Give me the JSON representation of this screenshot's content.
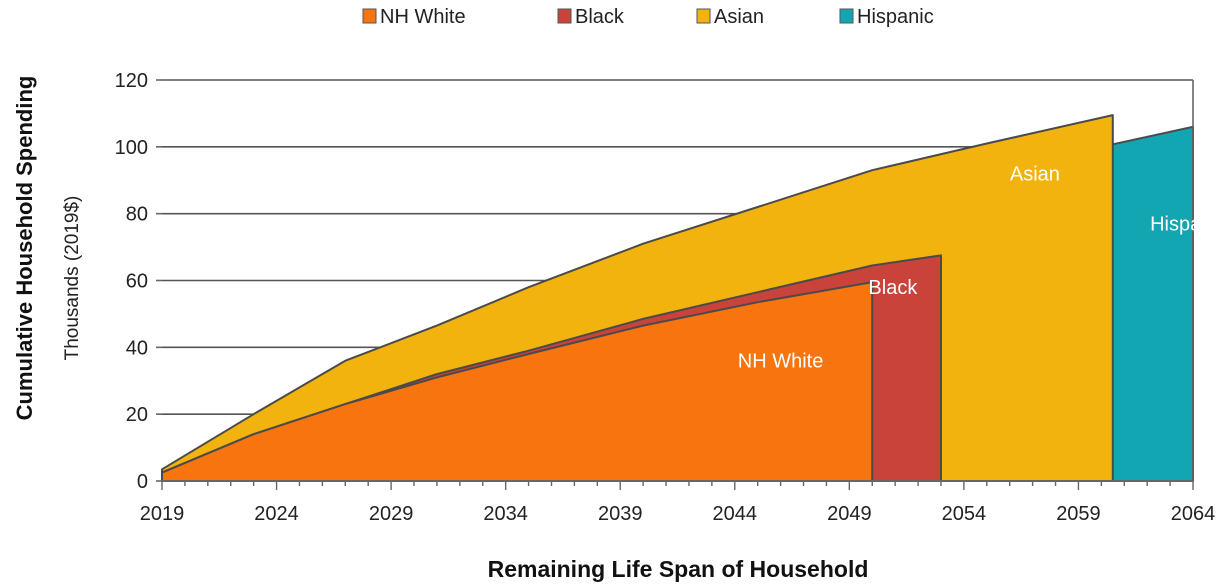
{
  "chart_data": {
    "type": "area",
    "title": "",
    "xlabel": "Remaining Life Span of Household",
    "ylabel": "Cumulative Household Spending",
    "ylabel_sub": "Thousands (2019$)",
    "xlim": [
      2019,
      2064
    ],
    "ylim": [
      0,
      120
    ],
    "x_ticks": [
      2019,
      2024,
      2029,
      2034,
      2039,
      2044,
      2049,
      2054,
      2059,
      2064
    ],
    "y_ticks": [
      0,
      20,
      40,
      60,
      80,
      100,
      120
    ],
    "grid": true,
    "legend_position": "top",
    "series": [
      {
        "name": "Hispanic",
        "color": "#12a6b3",
        "label": "Hispanic",
        "points": [
          [
            2019,
            3
          ],
          [
            2023,
            15
          ],
          [
            2027,
            26
          ],
          [
            2031,
            33
          ],
          [
            2035,
            42
          ],
          [
            2040,
            54
          ],
          [
            2045,
            66
          ],
          [
            2050,
            77
          ],
          [
            2055,
            88
          ],
          [
            2060,
            100
          ],
          [
            2064,
            106
          ]
        ]
      },
      {
        "name": "Asian",
        "color": "#f2b30f",
        "label": "Asian",
        "points": [
          [
            2019,
            3.5
          ],
          [
            2023,
            20
          ],
          [
            2027,
            36
          ],
          [
            2031,
            46.5
          ],
          [
            2035,
            58
          ],
          [
            2040,
            71
          ],
          [
            2045,
            82
          ],
          [
            2050,
            93
          ],
          [
            2055,
            101
          ],
          [
            2060.5,
            109.5
          ]
        ]
      },
      {
        "name": "Black",
        "color": "#c9433b",
        "label": "Black",
        "points": [
          [
            2019,
            2.5
          ],
          [
            2023,
            14
          ],
          [
            2027,
            23
          ],
          [
            2031,
            32
          ],
          [
            2035,
            39
          ],
          [
            2040,
            48.5
          ],
          [
            2045,
            56.5
          ],
          [
            2050,
            64.5
          ],
          [
            2053,
            67.5
          ]
        ]
      },
      {
        "name": "NH White",
        "color": "#f7740f",
        "label": "NH White",
        "points": [
          [
            2019,
            2.5
          ],
          [
            2023,
            14
          ],
          [
            2027,
            23
          ],
          [
            2031,
            31
          ],
          [
            2035,
            38
          ],
          [
            2040,
            46.5
          ],
          [
            2045,
            53.5
          ],
          [
            2050,
            59.5
          ]
        ]
      }
    ],
    "legend": [
      "NH White",
      "Black",
      "Asian",
      "Hispanic"
    ],
    "area_labels": [
      {
        "text": "NH White",
        "x": 2046,
        "y": 36
      },
      {
        "text": "Black",
        "x": 2050.9,
        "y": 58
      },
      {
        "text": "Asian",
        "x": 2057.1,
        "y": 92
      },
      {
        "text": "Hispanic",
        "x": 2063.8,
        "y": 77
      }
    ]
  }
}
